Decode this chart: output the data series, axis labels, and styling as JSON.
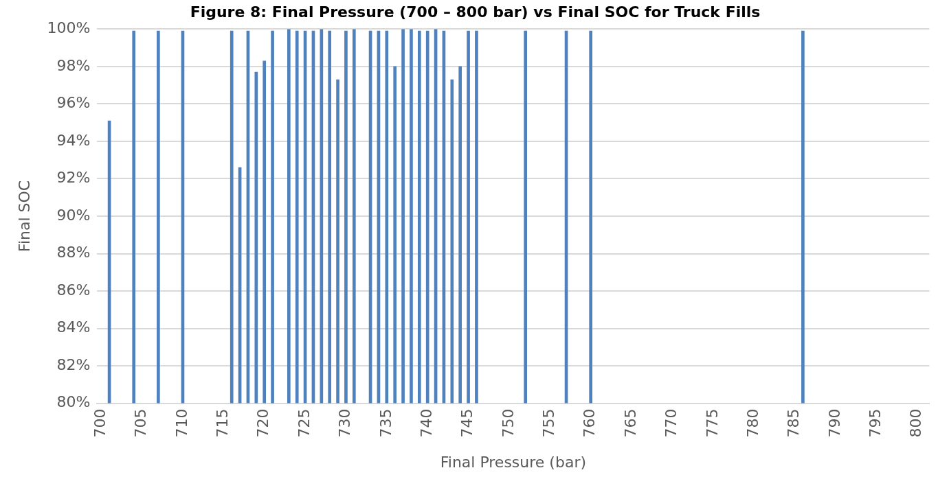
{
  "chart_data": {
    "type": "bar",
    "title": "Figure 8: Final Pressure (700 – 800 bar) vs Final SOC for Truck Fills",
    "xlabel": "Final Pressure (bar)",
    "ylabel": "Final SOC",
    "categories": [
      "700",
      null,
      null,
      null,
      null,
      "705",
      null,
      null,
      null,
      null,
      "710",
      null,
      null,
      null,
      null,
      "715",
      null,
      null,
      null,
      null,
      "720",
      null,
      null,
      null,
      null,
      "725",
      null,
      null,
      null,
      null,
      "730",
      null,
      null,
      null,
      null,
      "735",
      null,
      null,
      null,
      null,
      "740",
      null,
      null,
      null,
      null,
      "745",
      null,
      null,
      null,
      null,
      "750",
      null,
      null,
      null,
      null,
      "755",
      null,
      null,
      null,
      null,
      "760",
      null,
      null,
      null,
      null,
      "765",
      null,
      null,
      null,
      null,
      "770",
      null,
      null,
      null,
      null,
      "775",
      null,
      null,
      null,
      null,
      "780",
      null,
      null,
      null,
      null,
      "785",
      null,
      null,
      null,
      null,
      "790",
      null,
      null,
      null,
      null,
      "795",
      null,
      null,
      null,
      null,
      "800",
      null
    ],
    "values": [
      null,
      95.1,
      null,
      null,
      99.9,
      null,
      null,
      99.9,
      null,
      null,
      99.9,
      null,
      null,
      null,
      null,
      null,
      99.9,
      92.6,
      99.9,
      97.7,
      98.3,
      99.9,
      null,
      100,
      99.9,
      99.9,
      99.9,
      100,
      99.9,
      97.3,
      99.9,
      100,
      null,
      99.9,
      99.9,
      99.9,
      98.0,
      100,
      100,
      99.9,
      99.9,
      100,
      99.9,
      97.3,
      98.0,
      99.9,
      99.9,
      null,
      null,
      null,
      null,
      null,
      99.9,
      null,
      null,
      null,
      null,
      99.9,
      null,
      null,
      99.9,
      null,
      null,
      null,
      null,
      null,
      null,
      null,
      null,
      null,
      null,
      null,
      null,
      null,
      null,
      null,
      null,
      null,
      null,
      null,
      null,
      null,
      null,
      null,
      null,
      null,
      99.9,
      null,
      null,
      null,
      null,
      null,
      null,
      null,
      null,
      null,
      null,
      null,
      null,
      null,
      null,
      null
    ],
    "color": "#4f81bd",
    "ylim": [
      80,
      100
    ],
    "yticks": [
      {
        "value": 80,
        "label": "80%"
      },
      {
        "value": 82,
        "label": "82%"
      },
      {
        "value": 84,
        "label": "84%"
      },
      {
        "value": 86,
        "label": "86%"
      },
      {
        "value": 88,
        "label": "88%"
      },
      {
        "value": 90,
        "label": "90%"
      },
      {
        "value": 92,
        "label": "92%"
      },
      {
        "value": 94,
        "label": "94%"
      },
      {
        "value": 96,
        "label": "96%"
      },
      {
        "value": 98,
        "label": "98%"
      },
      {
        "value": 100,
        "label": "100%"
      }
    ],
    "grid": "y"
  }
}
